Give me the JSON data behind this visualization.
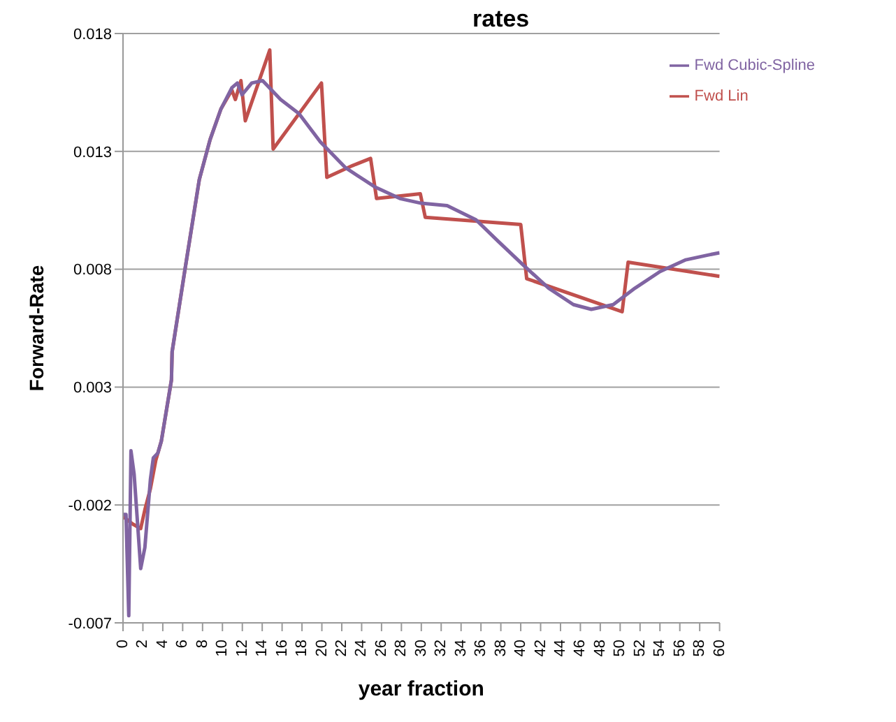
{
  "chart_data": {
    "type": "line",
    "title": "rates",
    "xlabel": "year fraction",
    "ylabel": "Forward-Rate",
    "xlim": [
      0,
      60
    ],
    "xticks": [
      0,
      2,
      4,
      6,
      8,
      10,
      12,
      14,
      16,
      18,
      20,
      22,
      24,
      26,
      28,
      30,
      32,
      34,
      36,
      38,
      40,
      42,
      44,
      46,
      48,
      50,
      52,
      54,
      56,
      58,
      60
    ],
    "ylim": [
      -0.007,
      0.018
    ],
    "yticks": [
      -0.007,
      -0.002,
      0.003,
      0.008,
      0.013,
      0.018
    ],
    "grid": "y",
    "legend": "top right",
    "marker": "none",
    "line_style": "solid",
    "series": [
      {
        "name": "Fwd Lin",
        "color": "#c0504d",
        "x": [
          0.03,
          0.95,
          1.78,
          2.2,
          2.76,
          3.3,
          3.85,
          4.87,
          4.94,
          6.2,
          7.67,
          8.76,
          9.85,
          10.95,
          11.3,
          11.86,
          12.3,
          14.76,
          15.1,
          19.96,
          20.5,
          23.1,
          24.9,
          25.5,
          29.9,
          30.4,
          40.0,
          40.6,
          50.2,
          50.8,
          60
        ],
        "values": [
          -0.0025,
          -0.0028,
          -0.003,
          -0.0022,
          -0.0013,
          -0.0001,
          0.0007,
          0.0033,
          0.0045,
          0.0079,
          0.0118,
          0.0135,
          0.0148,
          0.0156,
          0.0152,
          0.016,
          0.0143,
          0.0173,
          0.0131,
          0.0159,
          0.0119,
          0.0124,
          0.0127,
          0.011,
          0.0112,
          0.0102,
          0.0099,
          0.0076,
          0.0062,
          0.0083,
          0.0077
        ]
      },
      {
        "name": "Fwd Cubic-Spline",
        "color": "#8064a2",
        "x": [
          0.03,
          0.3,
          0.58,
          0.8,
          1.12,
          1.78,
          2.2,
          2.76,
          3.05,
          3.5,
          3.85,
          4.87,
          4.94,
          6.2,
          7.67,
          8.76,
          9.85,
          10.95,
          11.5,
          11.97,
          12.95,
          14.04,
          15.85,
          17.7,
          19.85,
          22.4,
          25.3,
          27.85,
          30.0,
          32.6,
          35.5,
          37.7,
          40.2,
          42.8,
          45.3,
          47.1,
          49.3,
          51.5,
          54.0,
          56.6,
          58.8,
          60
        ],
        "values": [
          -0.0024,
          -0.0024,
          -0.0067,
          0.0003,
          -0.0007,
          -0.0047,
          -0.0038,
          -0.0009,
          0,
          0.0002,
          0.0007,
          0.0033,
          0.0045,
          0.0079,
          0.0118,
          0.0135,
          0.0148,
          0.0157,
          0.0159,
          0.0154,
          0.0159,
          0.016,
          0.0152,
          0.0146,
          0.0134,
          0.0123,
          0.0115,
          0.011,
          0.0108,
          0.0107,
          0.0101,
          0.0092,
          0.0082,
          0.0072,
          0.0065,
          0.0063,
          0.0065,
          0.0072,
          0.0079,
          0.0084,
          0.0086,
          0.0087
        ]
      }
    ]
  }
}
